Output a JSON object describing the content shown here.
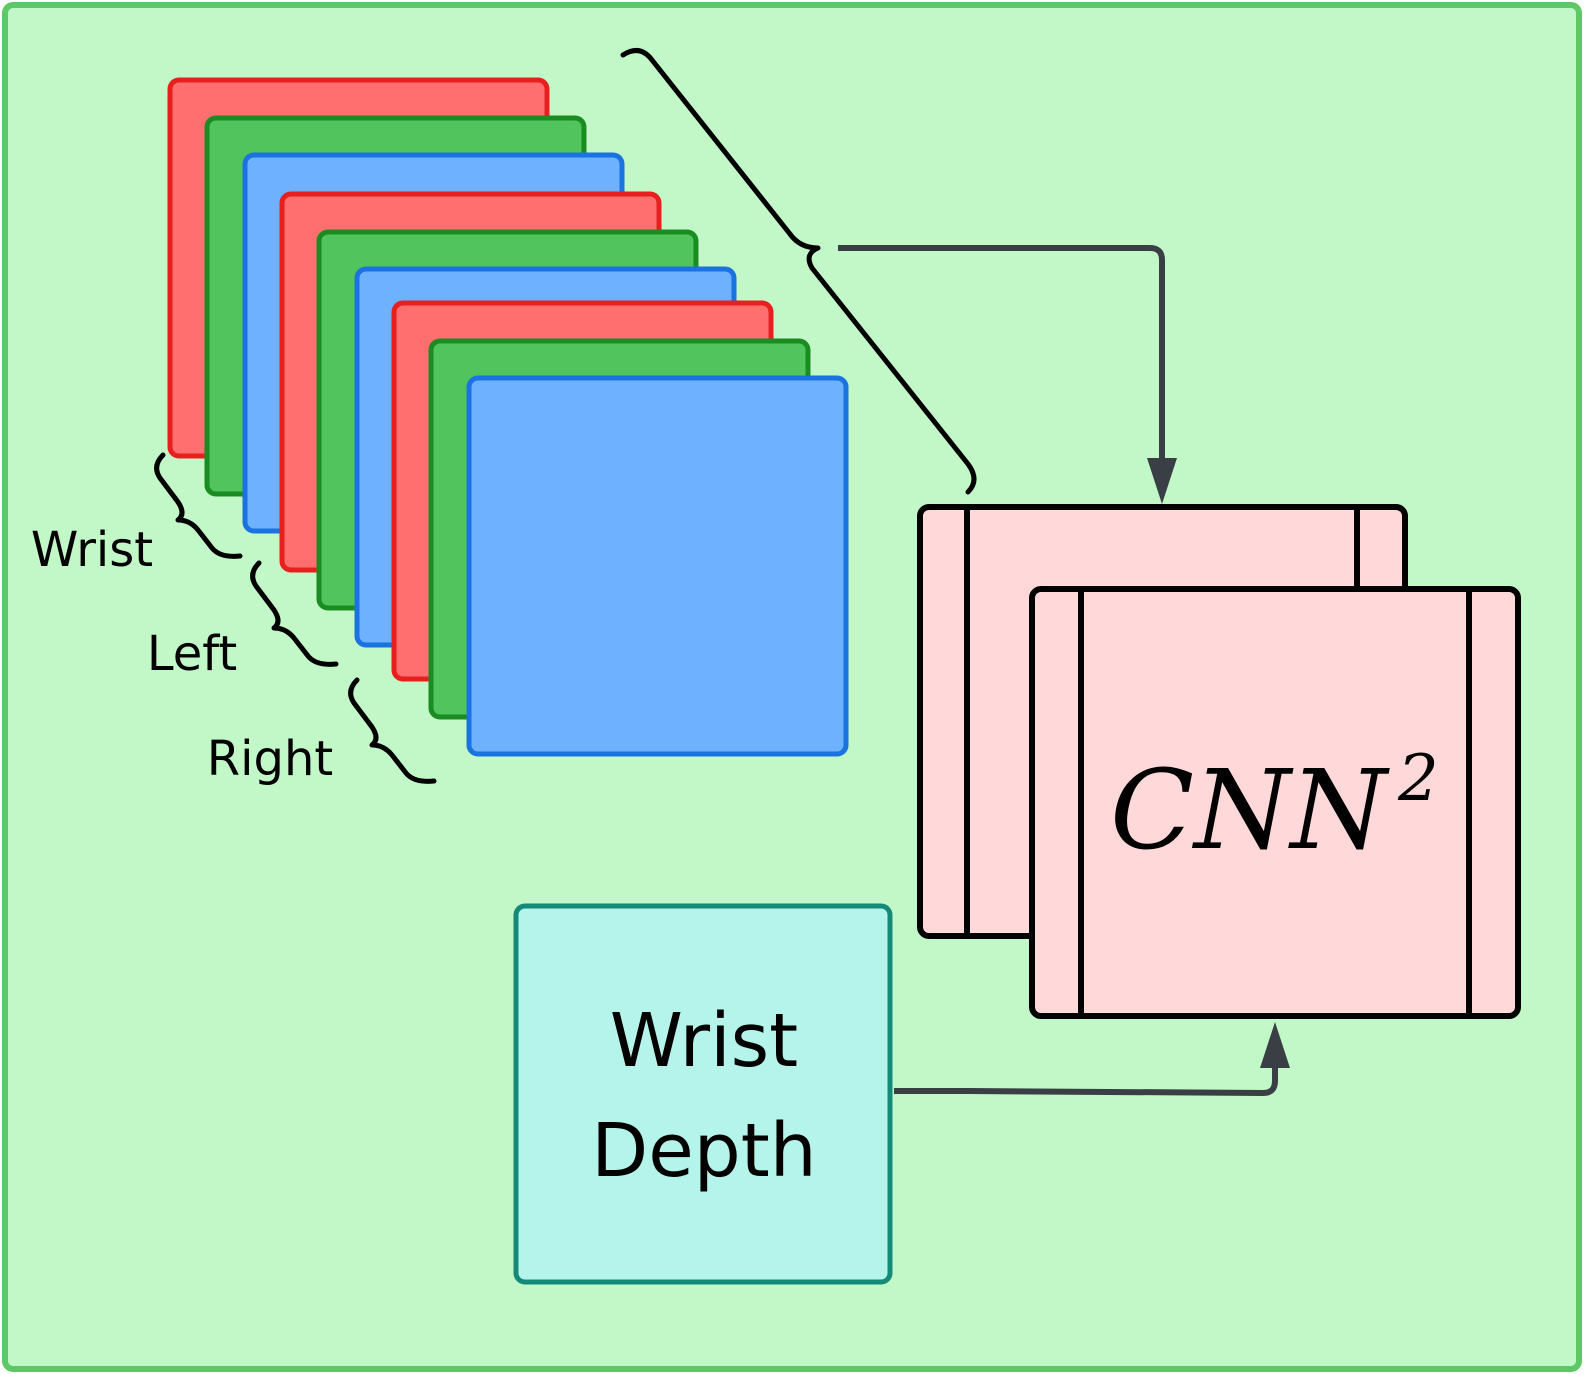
{
  "diagram": {
    "camera_labels": [
      "Wrist",
      "Left",
      "Right"
    ],
    "depth_box_lines": [
      "Wrist",
      "Depth"
    ],
    "cnn_label": {
      "base": "CNN",
      "superscript": "2"
    }
  },
  "colors": {
    "background": "#c2f7c8",
    "border": "#5ec867",
    "red_channel_fill": "#ff6f6f",
    "red_channel_stroke": "#e81f1f",
    "green_channel_fill": "#52c45e",
    "green_channel_stroke": "#1a8c22",
    "blue_channel_fill": "#6eb2ff",
    "blue_channel_stroke": "#1a73e0",
    "cnn_fill": "#ffd9d9",
    "depth_fill": "#b5f4ea",
    "depth_stroke": "#148a78",
    "arrow": "#3a3f46"
  }
}
